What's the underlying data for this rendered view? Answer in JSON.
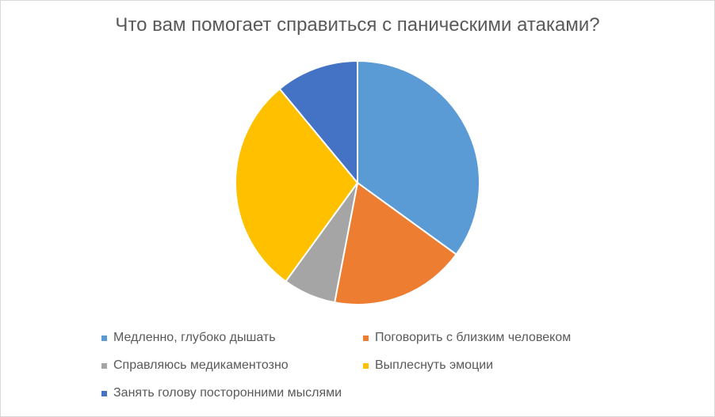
{
  "chart_data": {
    "type": "pie",
    "title": "Что вам помогает справиться с паническими атаками?",
    "categories": [
      "Медленно, глубоко дышать",
      "Поговорить с близким человеком",
      "Справляюсь медикаментозно",
      "Выплеснуть эмоции",
      "Занять голову посторонними мыслями"
    ],
    "values": [
      35,
      18,
      7,
      29,
      11
    ],
    "colors": [
      "#5B9BD5",
      "#ED7D31",
      "#A5A5A5",
      "#FFC000",
      "#4472C4"
    ],
    "legend": "bottom",
    "start_angle": "12 o'clock",
    "direction": "clockwise"
  }
}
